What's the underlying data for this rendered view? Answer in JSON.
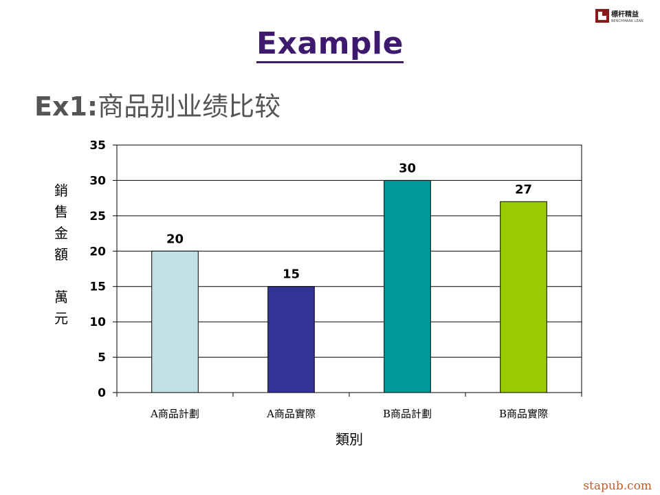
{
  "slide": {
    "title": "Example",
    "subtitle_prefix": "Ex1:",
    "subtitle_text": "商品别业绩比较",
    "watermark": "stapub.com"
  },
  "logo": {
    "name": "標杆精益",
    "sub": "BENCHMARK LEAN",
    "accent": "#8b1a1a"
  },
  "chart_data": {
    "type": "bar",
    "categories": [
      "A商品計劃",
      "A商品實際",
      "B商品計劃",
      "B商品實際"
    ],
    "values": [
      20,
      15,
      30,
      27
    ],
    "colors": [
      "#bfe0e4",
      "#333399",
      "#009999",
      "#99cc00"
    ],
    "ylim": [
      0,
      35
    ],
    "yticks": [
      0,
      5,
      10,
      15,
      20,
      25,
      30,
      35
    ],
    "ylabel": "銷售金額 萬元",
    "xlabel": "類別",
    "grid": true,
    "data_labels": true
  }
}
